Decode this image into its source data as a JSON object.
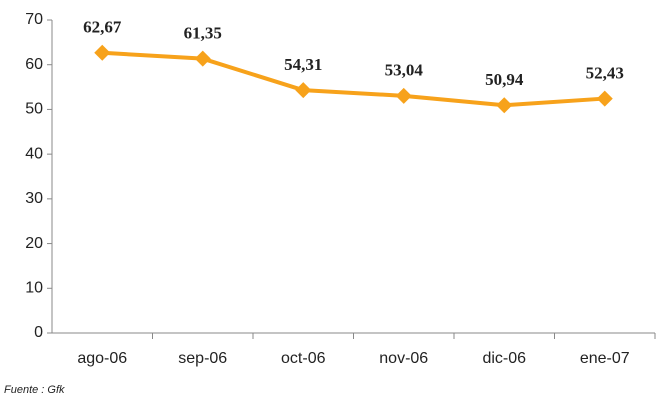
{
  "chart_data": {
    "type": "line",
    "categories": [
      "ago-06",
      "sep-06",
      "oct-06",
      "nov-06",
      "dic-06",
      "ene-07"
    ],
    "series": [
      {
        "name": "Serie",
        "color": "#f7a21b",
        "values": [
          62.67,
          61.35,
          54.31,
          53.04,
          50.94,
          52.43
        ],
        "value_labels": [
          "62,67",
          "61,35",
          "54,31",
          "53,04",
          "50,94",
          "52,43"
        ]
      }
    ],
    "ylim": [
      0,
      70
    ],
    "yticks": [
      0,
      10,
      20,
      30,
      40,
      50,
      60,
      70
    ],
    "source": "Fuente : Gfk"
  }
}
